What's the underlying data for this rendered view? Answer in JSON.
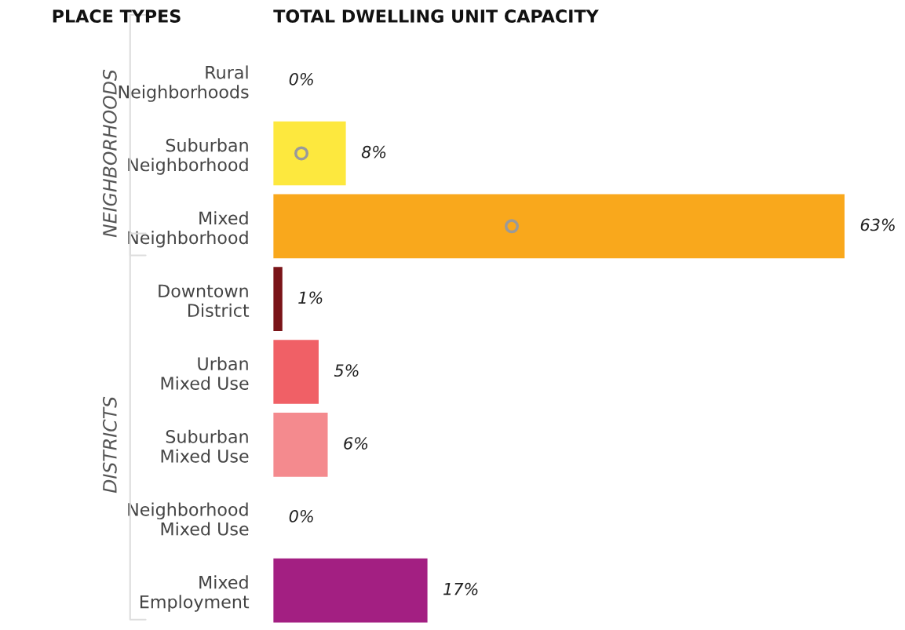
{
  "chart_data": {
    "type": "bar",
    "orientation": "horizontal",
    "title": "TOTAL DWELLING UNIT CAPACITY",
    "ylabel": "PLACE TYPES",
    "categories": [
      "Rural\nNeighborhoods",
      "Suburban\nNeighborhood",
      "Mixed\nNeighborhood",
      "Downtown\nDistrict",
      "Urban\nMixed Use",
      "Suburban\nMixed Use",
      "Neighborhood\nMixed Use",
      "Mixed\nEmployment"
    ],
    "series": [
      {
        "colors": [
          "#fde83e",
          "#fde83e",
          "#f9a81c",
          "#7a1418",
          "#f06066",
          "#f48a8e",
          "#f06066",
          "#a31f82"
        ],
        "values": [
          0,
          8,
          63,
          1,
          5,
          6,
          0,
          17
        ],
        "value_labels": [
          "0%",
          "8%",
          "63%",
          "1%",
          "5%",
          "6%",
          "0%",
          "17%"
        ]
      },
      {
        "type": "scatter",
        "color": "#9a9a9a",
        "marker": "circle",
        "values": [
          null,
          3.1,
          26.3,
          null,
          null,
          null,
          null,
          null
        ]
      }
    ],
    "tick_labels": "y",
    "grid": false,
    "annotations": [
      "NEIGHBORHOODS",
      "DISTRICTS"
    ]
  }
}
